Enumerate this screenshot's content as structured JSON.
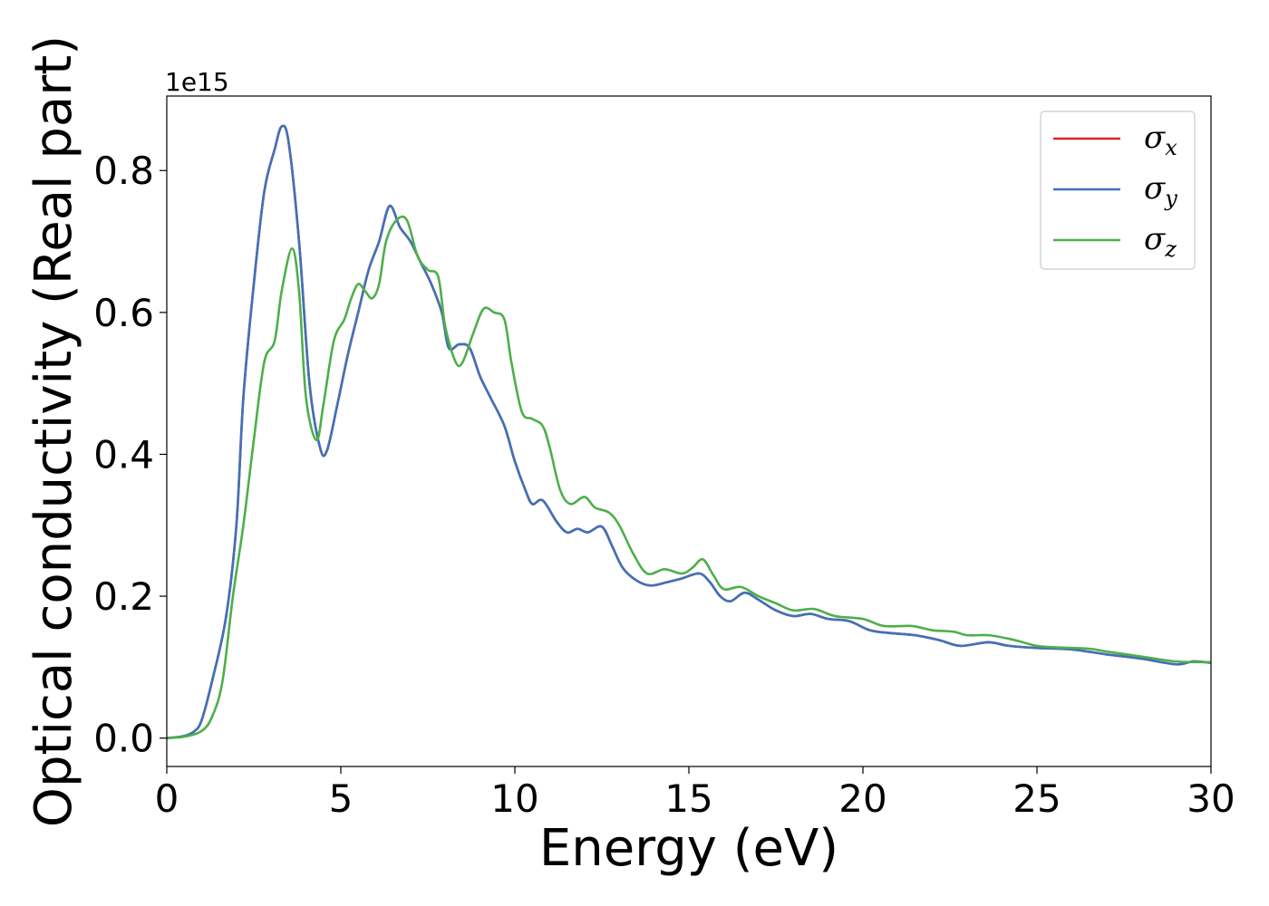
{
  "chart_data": {
    "type": "line",
    "xlabel": "Energy (eV)",
    "ylabel": "Optical conductivity (Real part)",
    "y_offset_label": "1e15",
    "xlim": [
      0,
      30
    ],
    "ylim": [
      -0.04,
      0.905
    ],
    "x_ticks": [
      0,
      5,
      10,
      15,
      20,
      25,
      30
    ],
    "x_tick_labels": [
      "0",
      "5",
      "10",
      "15",
      "20",
      "25",
      "30"
    ],
    "y_ticks": [
      0.0,
      0.2,
      0.4,
      0.6,
      0.8
    ],
    "y_tick_labels": [
      "0.0",
      "0.2",
      "0.4",
      "0.6",
      "0.8"
    ],
    "grid": false,
    "legend_position": "top-right",
    "series": [
      {
        "name": "σx",
        "symbol": "σ",
        "subscript": "x",
        "color": "#d62728",
        "points": [
          [
            0,
            0
          ],
          [
            0.5,
            0.003
          ],
          [
            0.8,
            0.01
          ],
          [
            1.0,
            0.025
          ],
          [
            1.3,
            0.08
          ],
          [
            1.7,
            0.17
          ],
          [
            2.0,
            0.3
          ],
          [
            2.2,
            0.48
          ],
          [
            2.5,
            0.64
          ],
          [
            2.8,
            0.77
          ],
          [
            3.1,
            0.83
          ],
          [
            3.3,
            0.862
          ],
          [
            3.5,
            0.84
          ],
          [
            3.8,
            0.7
          ],
          [
            4.1,
            0.5
          ],
          [
            4.4,
            0.41
          ],
          [
            4.6,
            0.405
          ],
          [
            4.9,
            0.47
          ],
          [
            5.2,
            0.54
          ],
          [
            5.5,
            0.6
          ],
          [
            5.8,
            0.66
          ],
          [
            6.1,
            0.7
          ],
          [
            6.4,
            0.75
          ],
          [
            6.7,
            0.72
          ],
          [
            7.0,
            0.7
          ],
          [
            7.3,
            0.67
          ],
          [
            7.6,
            0.64
          ],
          [
            7.9,
            0.6
          ],
          [
            8.1,
            0.55
          ],
          [
            8.4,
            0.555
          ],
          [
            8.7,
            0.55
          ],
          [
            9.0,
            0.51
          ],
          [
            9.3,
            0.48
          ],
          [
            9.7,
            0.44
          ],
          [
            10.0,
            0.39
          ],
          [
            10.3,
            0.35
          ],
          [
            10.5,
            0.33
          ],
          [
            10.8,
            0.335
          ],
          [
            11.2,
            0.305
          ],
          [
            11.5,
            0.29
          ],
          [
            11.8,
            0.295
          ],
          [
            12.1,
            0.29
          ],
          [
            12.5,
            0.298
          ],
          [
            12.8,
            0.27
          ],
          [
            13.1,
            0.24
          ],
          [
            13.5,
            0.222
          ],
          [
            13.9,
            0.215
          ],
          [
            14.4,
            0.22
          ],
          [
            14.8,
            0.225
          ],
          [
            15.3,
            0.232
          ],
          [
            15.6,
            0.22
          ],
          [
            15.9,
            0.2
          ],
          [
            16.2,
            0.193
          ],
          [
            16.6,
            0.205
          ],
          [
            17.0,
            0.195
          ],
          [
            17.5,
            0.18
          ],
          [
            18.0,
            0.172
          ],
          [
            18.5,
            0.175
          ],
          [
            19.0,
            0.168
          ],
          [
            19.6,
            0.165
          ],
          [
            20.2,
            0.152
          ],
          [
            20.8,
            0.148
          ],
          [
            21.5,
            0.145
          ],
          [
            22.2,
            0.138
          ],
          [
            22.8,
            0.13
          ],
          [
            23.6,
            0.135
          ],
          [
            24.2,
            0.13
          ],
          [
            25.0,
            0.127
          ],
          [
            26.0,
            0.125
          ],
          [
            27.0,
            0.118
          ],
          [
            28.0,
            0.112
          ],
          [
            29.0,
            0.104
          ],
          [
            29.5,
            0.108
          ],
          [
            30.0,
            0.106
          ]
        ]
      },
      {
        "name": "σy",
        "symbol": "σ",
        "subscript": "y",
        "color": "#3f72b8",
        "points": [
          [
            0,
            0
          ],
          [
            0.5,
            0.003
          ],
          [
            0.8,
            0.01
          ],
          [
            1.0,
            0.025
          ],
          [
            1.3,
            0.08
          ],
          [
            1.7,
            0.17
          ],
          [
            2.0,
            0.3
          ],
          [
            2.2,
            0.48
          ],
          [
            2.5,
            0.64
          ],
          [
            2.8,
            0.77
          ],
          [
            3.1,
            0.83
          ],
          [
            3.3,
            0.862
          ],
          [
            3.5,
            0.84
          ],
          [
            3.8,
            0.7
          ],
          [
            4.1,
            0.5
          ],
          [
            4.4,
            0.41
          ],
          [
            4.6,
            0.405
          ],
          [
            4.9,
            0.47
          ],
          [
            5.2,
            0.54
          ],
          [
            5.5,
            0.6
          ],
          [
            5.8,
            0.66
          ],
          [
            6.1,
            0.7
          ],
          [
            6.4,
            0.75
          ],
          [
            6.7,
            0.72
          ],
          [
            7.0,
            0.7
          ],
          [
            7.3,
            0.67
          ],
          [
            7.6,
            0.64
          ],
          [
            7.9,
            0.6
          ],
          [
            8.1,
            0.55
          ],
          [
            8.4,
            0.555
          ],
          [
            8.7,
            0.55
          ],
          [
            9.0,
            0.51
          ],
          [
            9.3,
            0.48
          ],
          [
            9.7,
            0.44
          ],
          [
            10.0,
            0.39
          ],
          [
            10.3,
            0.35
          ],
          [
            10.5,
            0.33
          ],
          [
            10.8,
            0.335
          ],
          [
            11.2,
            0.305
          ],
          [
            11.5,
            0.29
          ],
          [
            11.8,
            0.295
          ],
          [
            12.1,
            0.29
          ],
          [
            12.5,
            0.298
          ],
          [
            12.8,
            0.27
          ],
          [
            13.1,
            0.24
          ],
          [
            13.5,
            0.222
          ],
          [
            13.9,
            0.215
          ],
          [
            14.4,
            0.22
          ],
          [
            14.8,
            0.225
          ],
          [
            15.3,
            0.232
          ],
          [
            15.6,
            0.22
          ],
          [
            15.9,
            0.2
          ],
          [
            16.2,
            0.193
          ],
          [
            16.6,
            0.205
          ],
          [
            17.0,
            0.195
          ],
          [
            17.5,
            0.18
          ],
          [
            18.0,
            0.172
          ],
          [
            18.5,
            0.175
          ],
          [
            19.0,
            0.168
          ],
          [
            19.6,
            0.165
          ],
          [
            20.2,
            0.152
          ],
          [
            20.8,
            0.148
          ],
          [
            21.5,
            0.145
          ],
          [
            22.2,
            0.138
          ],
          [
            22.8,
            0.13
          ],
          [
            23.6,
            0.135
          ],
          [
            24.2,
            0.13
          ],
          [
            25.0,
            0.127
          ],
          [
            26.0,
            0.125
          ],
          [
            27.0,
            0.118
          ],
          [
            28.0,
            0.112
          ],
          [
            29.0,
            0.104
          ],
          [
            29.5,
            0.108
          ],
          [
            30.0,
            0.106
          ]
        ]
      },
      {
        "name": "σz",
        "symbol": "σ",
        "subscript": "z",
        "color": "#4daf4a",
        "points": [
          [
            0,
            0
          ],
          [
            0.5,
            0.002
          ],
          [
            1.0,
            0.01
          ],
          [
            1.3,
            0.03
          ],
          [
            1.6,
            0.08
          ],
          [
            1.9,
            0.2
          ],
          [
            2.2,
            0.3
          ],
          [
            2.5,
            0.42
          ],
          [
            2.8,
            0.53
          ],
          [
            3.1,
            0.56
          ],
          [
            3.3,
            0.63
          ],
          [
            3.6,
            0.69
          ],
          [
            3.8,
            0.63
          ],
          [
            4.0,
            0.48
          ],
          [
            4.3,
            0.42
          ],
          [
            4.5,
            0.47
          ],
          [
            4.8,
            0.56
          ],
          [
            5.1,
            0.59
          ],
          [
            5.3,
            0.62
          ],
          [
            5.5,
            0.64
          ],
          [
            5.7,
            0.63
          ],
          [
            5.9,
            0.62
          ],
          [
            6.1,
            0.64
          ],
          [
            6.3,
            0.7
          ],
          [
            6.6,
            0.73
          ],
          [
            6.9,
            0.73
          ],
          [
            7.2,
            0.68
          ],
          [
            7.5,
            0.66
          ],
          [
            7.8,
            0.65
          ],
          [
            8.0,
            0.58
          ],
          [
            8.3,
            0.53
          ],
          [
            8.5,
            0.53
          ],
          [
            8.8,
            0.57
          ],
          [
            9.1,
            0.605
          ],
          [
            9.4,
            0.6
          ],
          [
            9.7,
            0.59
          ],
          [
            9.9,
            0.53
          ],
          [
            10.2,
            0.46
          ],
          [
            10.5,
            0.45
          ],
          [
            10.8,
            0.44
          ],
          [
            11.0,
            0.41
          ],
          [
            11.3,
            0.35
          ],
          [
            11.6,
            0.33
          ],
          [
            12.0,
            0.34
          ],
          [
            12.3,
            0.325
          ],
          [
            12.7,
            0.318
          ],
          [
            13.0,
            0.3
          ],
          [
            13.4,
            0.26
          ],
          [
            13.8,
            0.232
          ],
          [
            14.3,
            0.238
          ],
          [
            14.8,
            0.232
          ],
          [
            15.1,
            0.24
          ],
          [
            15.4,
            0.252
          ],
          [
            15.7,
            0.23
          ],
          [
            16.0,
            0.21
          ],
          [
            16.5,
            0.213
          ],
          [
            17.0,
            0.2
          ],
          [
            17.5,
            0.19
          ],
          [
            18.0,
            0.18
          ],
          [
            18.6,
            0.182
          ],
          [
            19.2,
            0.172
          ],
          [
            20.0,
            0.168
          ],
          [
            20.6,
            0.158
          ],
          [
            21.4,
            0.158
          ],
          [
            22.0,
            0.152
          ],
          [
            22.6,
            0.15
          ],
          [
            23.0,
            0.145
          ],
          [
            23.6,
            0.145
          ],
          [
            24.2,
            0.14
          ],
          [
            24.6,
            0.135
          ],
          [
            25.0,
            0.13
          ],
          [
            25.5,
            0.128
          ],
          [
            26.5,
            0.126
          ],
          [
            27.0,
            0.122
          ],
          [
            28.0,
            0.115
          ],
          [
            29.0,
            0.108
          ],
          [
            30.0,
            0.107
          ]
        ]
      }
    ]
  }
}
